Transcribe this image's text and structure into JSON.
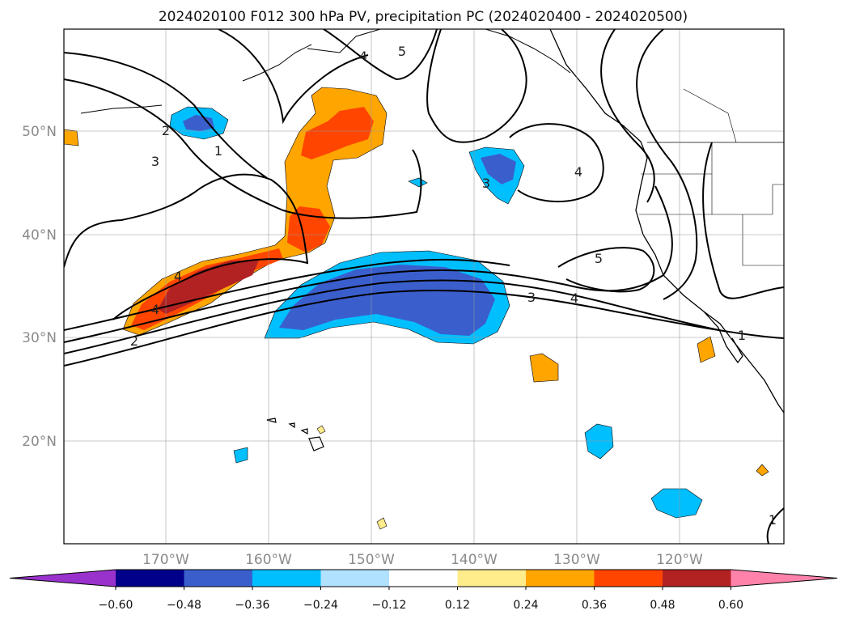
{
  "title": "2024020100 F012 300 hPa PV, precipitation PC (2024020400 - 2024020500)",
  "map": {
    "lon_ticks": [
      "170°W",
      "160°W",
      "150°W",
      "140°W",
      "130°W",
      "120°W"
    ],
    "lat_ticks": [
      "50°N",
      "40°N",
      "30°N",
      "20°N"
    ],
    "grid": true
  },
  "colorbar": {
    "tick_labels": [
      "−0.60",
      "−0.48",
      "−0.36",
      "−0.24",
      "−0.12",
      "0.12",
      "0.24",
      "0.36",
      "0.48",
      "0.60"
    ],
    "colors": [
      "#9932cc",
      "#00008b",
      "#3a5fcd",
      "#00bfff",
      "#b0e2ff",
      "#ffffff",
      "#ffec8b",
      "#ffa500",
      "#ff4500",
      "#b22222",
      "#ff82ab"
    ],
    "extend": "both"
  },
  "contour_labels": [
    "5",
    "4",
    "2",
    "1",
    "3",
    "3",
    "4",
    "5",
    "4",
    "2",
    "3",
    "4",
    "1",
    "1",
    "4"
  ]
}
